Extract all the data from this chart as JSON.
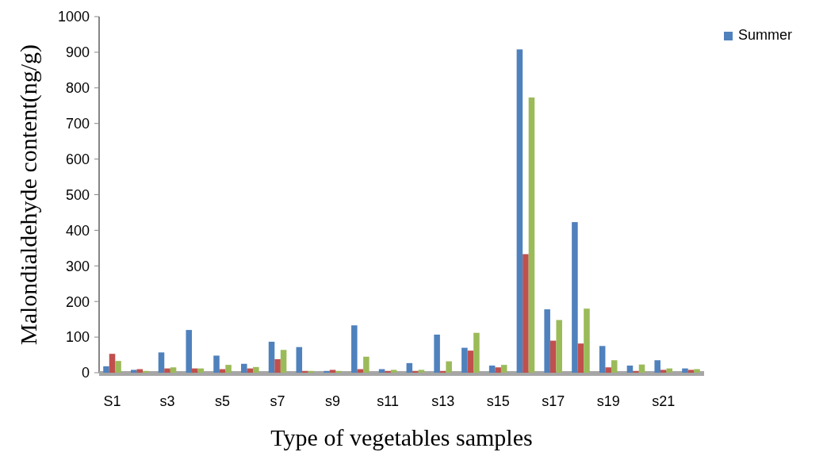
{
  "chart_data": {
    "type": "bar",
    "xlabel": "Type of vegetables samples",
    "ylabel": "Malondialdehyde content(ng/g)",
    "categories": [
      "S1",
      null,
      "s3",
      null,
      "s5",
      null,
      "s7",
      null,
      "s9",
      null,
      "s11",
      null,
      "s13",
      null,
      "s15",
      null,
      "s17",
      null,
      "s19",
      null,
      "s21",
      null
    ],
    "series": [
      {
        "name": "Summer",
        "color": "#4f81bd",
        "values": [
          18,
          8,
          57,
          120,
          48,
          25,
          87,
          72,
          5,
          133,
          10,
          27,
          107,
          70,
          20,
          908,
          178,
          423,
          75,
          20,
          35,
          12
        ]
      },
      {
        "color": "#c0504d",
        "values": [
          53,
          10,
          12,
          12,
          10,
          12,
          38,
          5,
          8,
          10,
          5,
          5,
          5,
          62,
          15,
          333,
          90,
          82,
          15,
          5,
          8,
          8
        ]
      },
      {
        "color": "#9bbb59",
        "values": [
          33,
          5,
          15,
          12,
          22,
          16,
          64,
          5,
          5,
          45,
          8,
          8,
          32,
          112,
          22,
          773,
          148,
          180,
          35,
          23,
          12,
          10
        ]
      }
    ],
    "ylim": [
      0,
      1000
    ],
    "yticks": [
      0,
      100,
      200,
      300,
      400,
      500,
      600,
      700,
      800,
      900,
      1000
    ],
    "legend": "top right"
  }
}
